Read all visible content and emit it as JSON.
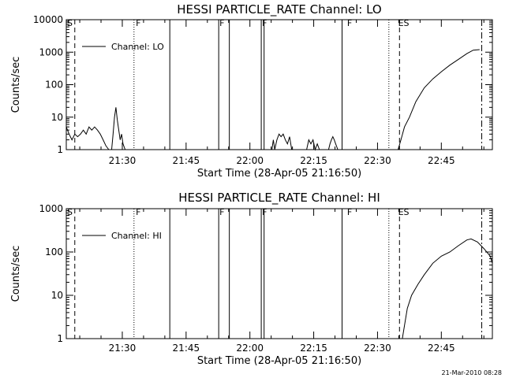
{
  "stamp": "21-Mar-2010 08:28",
  "chart_data": [
    {
      "type": "line",
      "title": "HESSI PARTICLE_RATE Channel: LO",
      "xlabel": "Start Time (28-Apr-05 21:16:50)",
      "ylabel": "Counts/sec",
      "yscale": "log",
      "ylim": [
        1,
        10000
      ],
      "xlim": [
        "21:16:50",
        "22:57:00"
      ],
      "yticks": [
        "1",
        "10",
        "100",
        "1000",
        "10000"
      ],
      "xticks": [
        "21:30",
        "21:45",
        "22:00",
        "22:15",
        "22:30",
        "22:45"
      ],
      "legend": "top-left",
      "series": [
        {
          "name": "Channel: LO",
          "segments": [
            [
              [
                "21:16:50",
                5
              ],
              [
                "21:17:30",
                3
              ],
              [
                "21:18:10",
                2
              ],
              [
                "21:18:50",
                3
              ],
              [
                "21:19:30",
                2.5
              ],
              [
                "21:20:10",
                3
              ],
              [
                "21:20:50",
                4
              ],
              [
                "21:21:30",
                3
              ],
              [
                "21:22:10",
                5
              ],
              [
                "21:22:50",
                4
              ],
              [
                "21:23:30",
                5
              ],
              [
                "21:24:10",
                4
              ],
              [
                "21:24:50",
                3
              ],
              [
                "21:25:30",
                2
              ],
              [
                "21:26:10",
                1.3
              ],
              [
                "21:26:50",
                1
              ]
            ],
            [
              [
                "21:27:30",
                1
              ],
              [
                "21:27:50",
                3
              ],
              [
                "21:28:10",
                10
              ],
              [
                "21:28:30",
                20
              ],
              [
                "21:28:50",
                8
              ],
              [
                "21:29:10",
                4
              ],
              [
                "21:29:30",
                2
              ],
              [
                "21:29:50",
                3
              ],
              [
                "21:30:10",
                1.5
              ],
              [
                "21:30:40",
                1
              ]
            ],
            [
              [
                "22:05:10",
                1
              ],
              [
                "22:05:30",
                2
              ],
              [
                "22:05:50",
                1
              ],
              [
                "22:06:20",
                2
              ],
              [
                "22:06:50",
                3
              ],
              [
                "22:07:20",
                2.5
              ],
              [
                "22:07:50",
                3
              ],
              [
                "22:08:20",
                2
              ],
              [
                "22:08:50",
                1.5
              ],
              [
                "22:09:20",
                2.5
              ],
              [
                "22:09:50",
                1
              ]
            ],
            [
              [
                "22:13:20",
                1
              ],
              [
                "22:13:50",
                2
              ],
              [
                "22:14:20",
                1.5
              ],
              [
                "22:14:50",
                2
              ],
              [
                "22:15:20",
                1
              ],
              [
                "22:15:50",
                1.5
              ],
              [
                "22:16:20",
                1
              ]
            ],
            [
              [
                "22:18:30",
                1
              ],
              [
                "22:18:50",
                1.5
              ],
              [
                "22:19:10",
                2
              ],
              [
                "22:19:30",
                2.5
              ],
              [
                "22:19:50",
                2
              ],
              [
                "22:20:10",
                1.5
              ],
              [
                "22:20:40",
                1
              ]
            ],
            [
              [
                "22:34:50",
                1
              ],
              [
                "22:35:30",
                2
              ],
              [
                "22:36:20",
                5
              ],
              [
                "22:37:30",
                10
              ],
              [
                "22:39:00",
                30
              ],
              [
                "22:41:00",
                80
              ],
              [
                "22:43:00",
                150
              ],
              [
                "22:45:00",
                250
              ],
              [
                "22:47:00",
                400
              ],
              [
                "22:49:00",
                600
              ],
              [
                "22:51:00",
                900
              ],
              [
                "22:52:30",
                1150
              ],
              [
                "22:54:00",
                1200
              ]
            ]
          ]
        }
      ],
      "flags": [
        {
          "label": "S",
          "time": "21:16:50"
        },
        {
          "label": "F",
          "time": "21:33:00"
        },
        {
          "label": "F",
          "time": "21:52:40"
        },
        {
          "label": "F",
          "time": "22:02:40"
        },
        {
          "label": "F",
          "time": "22:22:40"
        },
        {
          "label": "ES",
          "time": "22:34:40"
        }
      ]
    },
    {
      "type": "line",
      "title": "HESSI PARTICLE_RATE Channel: HI",
      "xlabel": "Start Time (28-Apr-05 21:16:50)",
      "ylabel": "Counts/sec",
      "yscale": "log",
      "ylim": [
        1,
        1000
      ],
      "xlim": [
        "21:16:50",
        "22:57:00"
      ],
      "yticks": [
        "1",
        "10",
        "100",
        "1000"
      ],
      "xticks": [
        "21:30",
        "21:45",
        "22:00",
        "22:15",
        "22:30",
        "22:45"
      ],
      "legend": "top-left",
      "series": [
        {
          "name": "Channel: HI",
          "segments": [
            [
              [
                "22:35:50",
                1
              ],
              [
                "22:36:20",
                2
              ],
              [
                "22:37:00",
                5
              ],
              [
                "22:38:00",
                10
              ],
              [
                "22:39:30",
                18
              ],
              [
                "22:41:00",
                30
              ],
              [
                "22:43:00",
                55
              ],
              [
                "22:45:00",
                80
              ],
              [
                "22:47:00",
                100
              ],
              [
                "22:49:00",
                140
              ],
              [
                "22:51:00",
                190
              ],
              [
                "22:52:00",
                200
              ],
              [
                "22:53:30",
                170
              ],
              [
                "22:55:00",
                120
              ],
              [
                "22:56:30",
                80
              ],
              [
                "22:57:00",
                55
              ]
            ]
          ]
        }
      ],
      "flags": [
        {
          "label": "S",
          "time": "21:16:50"
        },
        {
          "label": "F",
          "time": "21:33:00"
        },
        {
          "label": "F",
          "time": "21:52:40"
        },
        {
          "label": "F",
          "time": "22:02:40"
        },
        {
          "label": "F",
          "time": "22:22:40"
        },
        {
          "label": "ES",
          "time": "22:34:40"
        }
      ]
    }
  ]
}
